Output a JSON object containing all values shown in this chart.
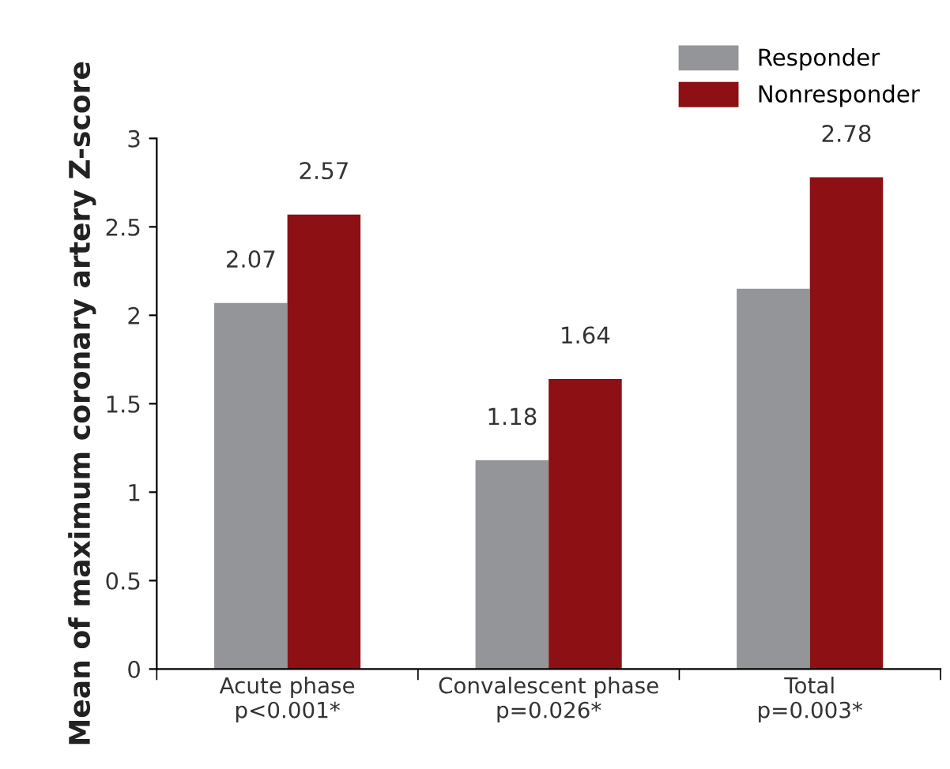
{
  "chart_data": {
    "type": "bar",
    "ylabel": "Mean of maximum coronary artery Z-score",
    "categories": [
      "Acute phase\np<0.001*",
      "Convalescent phase\np=0.026*",
      "Total\np=0.003*"
    ],
    "series": [
      {
        "name": "Responder",
        "color": "#949598",
        "values": [
          2.07,
          1.18,
          2.15
        ],
        "value_labels": [
          "2.07",
          "1.18",
          null
        ]
      },
      {
        "name": "Nonresponder",
        "color": "#8d1014",
        "values": [
          2.57,
          1.64,
          2.78
        ],
        "value_labels": [
          "2.57",
          "1.64",
          "2.78"
        ]
      }
    ],
    "ylim": [
      0,
      3
    ],
    "yticks": [
      0,
      0.5,
      1,
      1.5,
      2,
      2.5,
      3
    ],
    "grid": false,
    "legend": "top right"
  }
}
